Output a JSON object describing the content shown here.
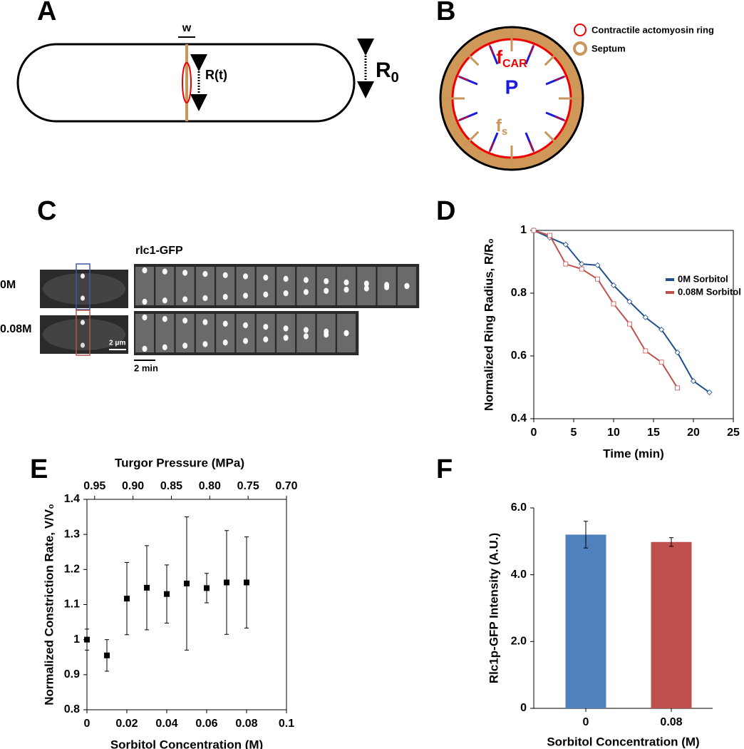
{
  "panels": {
    "A": {
      "label": "A",
      "w": "w",
      "r_t": "R(t)",
      "r0": [
        "R",
        "0"
      ]
    },
    "B": {
      "label": "B",
      "f_car": [
        "f",
        "CAR"
      ],
      "p": "P",
      "f_s": [
        "f",
        "s"
      ],
      "legend": [
        "Contractile actomyosin ring",
        "Septum"
      ]
    },
    "C": {
      "label": "C",
      "title": "rlc1-GFP",
      "rows": [
        "0M",
        "0.08M"
      ],
      "scale_um": "2 μm",
      "scale_min": "2 min"
    },
    "D": {
      "label": "D"
    },
    "E": {
      "label": "E"
    },
    "F": {
      "label": "F"
    }
  },
  "chart_data": [
    {
      "type": "line",
      "xlabel": "Time (min)",
      "ylabel": "Normalized Ring Radius, R/R₀",
      "x": [
        0,
        2,
        4,
        6,
        8,
        10,
        12,
        14,
        16,
        18,
        20,
        22
      ],
      "series": [
        {
          "name": "0M Sorbitol",
          "color": "#1f4e8c",
          "marker": "diamond",
          "values": [
            1,
            0.977,
            0.955,
            0.893,
            0.889,
            0.825,
            0.773,
            0.723,
            0.684,
            0.611,
            0.52,
            0.484
          ]
        },
        {
          "name": "0.08M Sorbitol",
          "color": "#c0504d",
          "marker": "square",
          "values": [
            1,
            0.984,
            0.893,
            0.877,
            0.845,
            0.766,
            0.702,
            0.616,
            0.58,
            0.498,
            null,
            null
          ]
        }
      ],
      "xlim": [
        0,
        25
      ],
      "xticks": [
        0,
        5,
        10,
        15,
        20,
        25
      ],
      "ylim": [
        0.4,
        1
      ],
      "yticks": [
        0.4,
        0.6,
        0.8,
        1
      ],
      "legend": "upper right",
      "frame": true
    },
    {
      "type": "scatter",
      "xlabel": "Sorbitol Concentration (M)",
      "ylabel": "Normalized Constriction Rate, V/V₀",
      "x2label": "Turgor Pressure (MPa)",
      "x": [
        0,
        0.01,
        0.02,
        0.03,
        0.04,
        0.05,
        0.06,
        0.07,
        0.08
      ],
      "values": [
        1,
        0.955,
        1.117,
        1.148,
        1.13,
        1.16,
        1.147,
        1.163,
        1.163
      ],
      "errors": [
        0.03,
        0.045,
        0.103,
        0.12,
        0.083,
        0.19,
        0.042,
        0.148,
        0.13
      ],
      "color": "#000000",
      "xlim": [
        0,
        0.1
      ],
      "xticks": [
        0,
        0.02,
        0.04,
        0.06,
        0.08,
        0.1
      ],
      "x2lim": [
        0.96,
        0.7
      ],
      "x2ticks": [
        0.95,
        {
          "value": 0.9,
          "label": "0.90"
        },
        0.85,
        {
          "value": 0.8,
          "label": "0.80"
        },
        0.75,
        {
          "value": 0.7,
          "label": "0.70"
        }
      ],
      "ylim": [
        0.8,
        1.4
      ],
      "yticks": [
        0.8,
        0.9,
        1,
        1.1,
        1.2,
        1.3,
        1.4
      ],
      "frame": true
    },
    {
      "type": "bar",
      "xlabel": "Sorbitol Concentration (M)",
      "ylabel": "Rlc1p-GFP Intensity (A.U.)",
      "categories": [
        "0",
        "0.08"
      ],
      "values": [
        5.2,
        4.98
      ],
      "errors": [
        0.4,
        0.13
      ],
      "colors": [
        "#4f81bd",
        "#c0504d"
      ],
      "ylim": [
        0,
        6
      ],
      "yticks": [
        0,
        {
          "value": 2,
          "label": "2.0"
        },
        {
          "value": 4,
          "label": "4.0"
        },
        {
          "value": 6,
          "label": "6.0"
        }
      ],
      "frame": false
    }
  ]
}
